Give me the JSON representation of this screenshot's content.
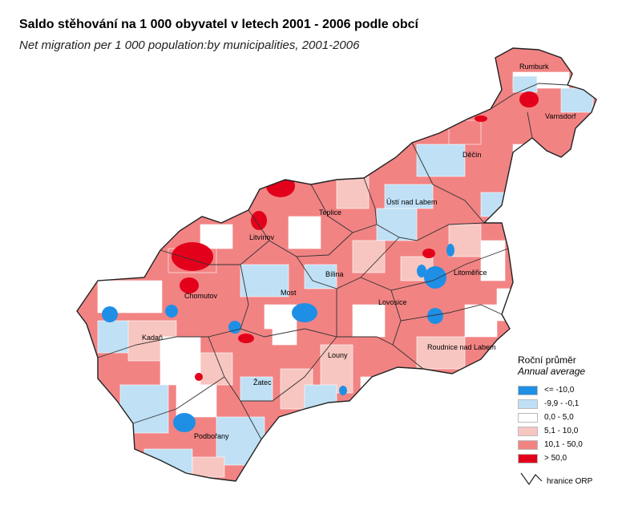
{
  "title": "Saldo stěhování na 1 000 obyvatel v letech 2001 - 2006 podle obcí",
  "subtitle": "Net migration per 1 000 population:by municipalities, 2001-2006",
  "colors": {
    "c1": "#1f8fe6",
    "c2": "#bfe0f5",
    "c3": "#ffffff",
    "c4": "#f7c6c0",
    "c5": "#f28383",
    "c6": "#e3001b",
    "border": "#222222"
  },
  "towns": {
    "rumburk": "Rumburk",
    "varnsdorf": "Varnsdorf",
    "decin": "Děčín",
    "usti": "Ústí nad Labem",
    "teplice": "Teplice",
    "litvinov": "Litvínov",
    "bilina": "Bílina",
    "litomerice": "Litoměřice",
    "chomutov": "Chomutov",
    "most": "Most",
    "lovosice": "Lovosice",
    "kadan": "Kadaň",
    "louny": "Louny",
    "roudnice": "Roudnice nad Labem",
    "zatec": "Žatec",
    "podborany": "Podbořany"
  },
  "legend": {
    "title": "Roční průměr",
    "subtitle": "Annual average",
    "items": [
      {
        "label": "<= -10,0",
        "color": "#1f8fe6"
      },
      {
        "label": "-9,9 - -0,1",
        "color": "#bfe0f5"
      },
      {
        "label": "0,0 - 5,0",
        "color": "#ffffff"
      },
      {
        "label": "5,1 - 10,0",
        "color": "#f7c6c0"
      },
      {
        "label": "10,1 - 50,0",
        "color": "#f28383"
      },
      {
        "label": "> 50,0",
        "color": "#e3001b"
      }
    ],
    "border_label": "hranice ORP"
  }
}
